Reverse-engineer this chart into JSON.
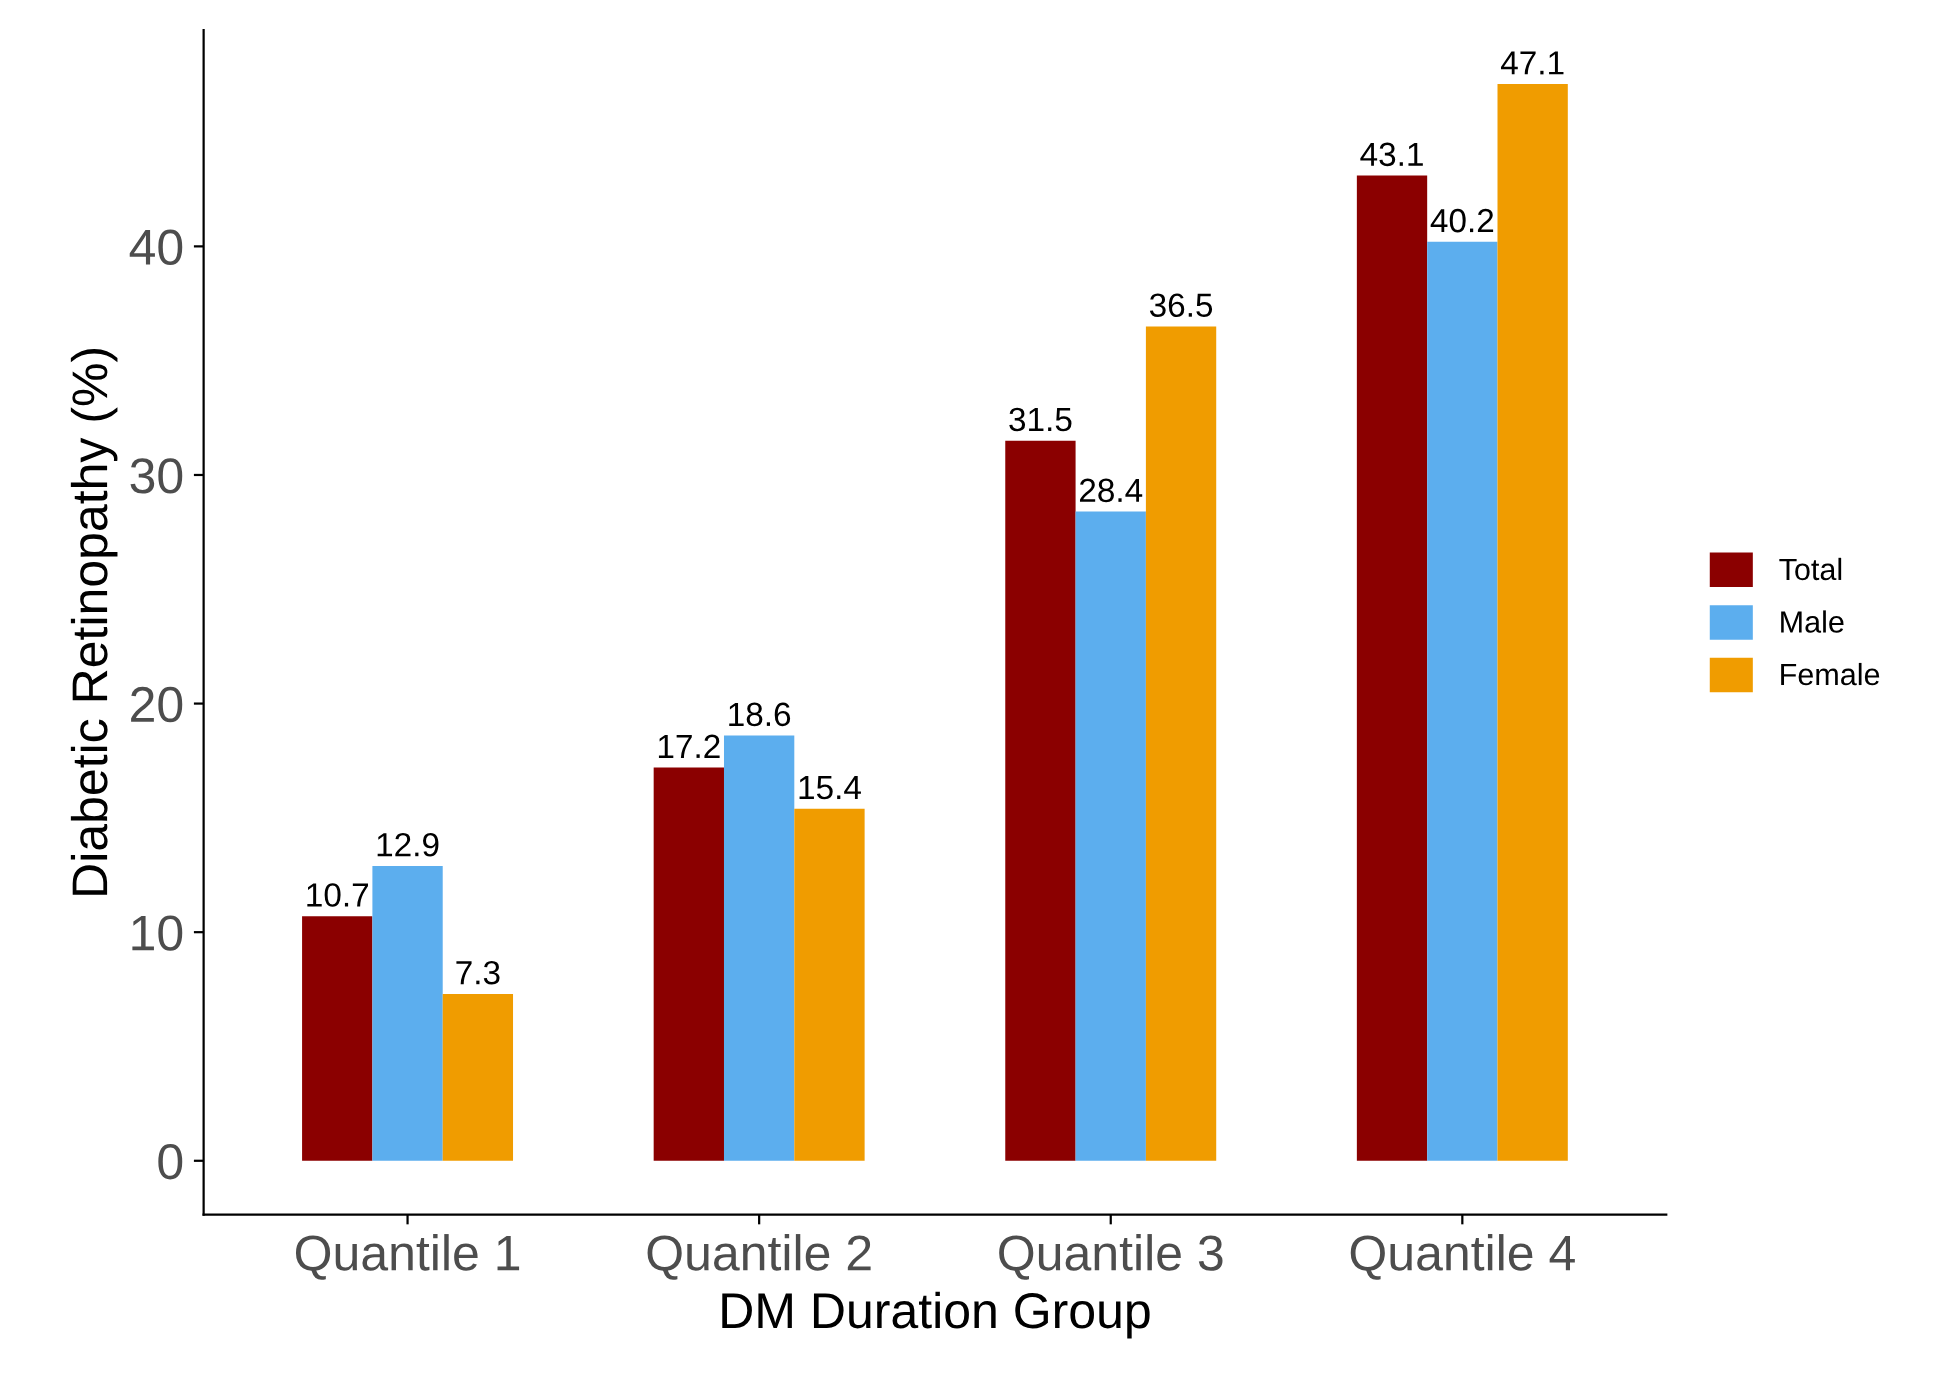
{
  "chart_data": {
    "type": "bar",
    "xlabel": "DM Duration Group",
    "ylabel": "Diabetic Retinopathy (%)",
    "categories": [
      "Quantile 1",
      "Quantile 2",
      "Quantile 3",
      "Quantile 4"
    ],
    "series": [
      {
        "name": "Total",
        "color": "#8b0000",
        "values": [
          10.7,
          17.2,
          31.5,
          43.1
        ]
      },
      {
        "name": "Male",
        "color": "#5caeee",
        "values": [
          12.9,
          18.6,
          28.4,
          40.2
        ]
      },
      {
        "name": "Female",
        "color": "#f09c00",
        "values": [
          7.3,
          15.4,
          36.5,
          47.1
        ]
      }
    ],
    "ylim": [
      -2.355,
      49.455
    ],
    "yticks": [
      0,
      10,
      20,
      30,
      40
    ],
    "grid": false,
    "legend": "right",
    "data_labels": true
  }
}
